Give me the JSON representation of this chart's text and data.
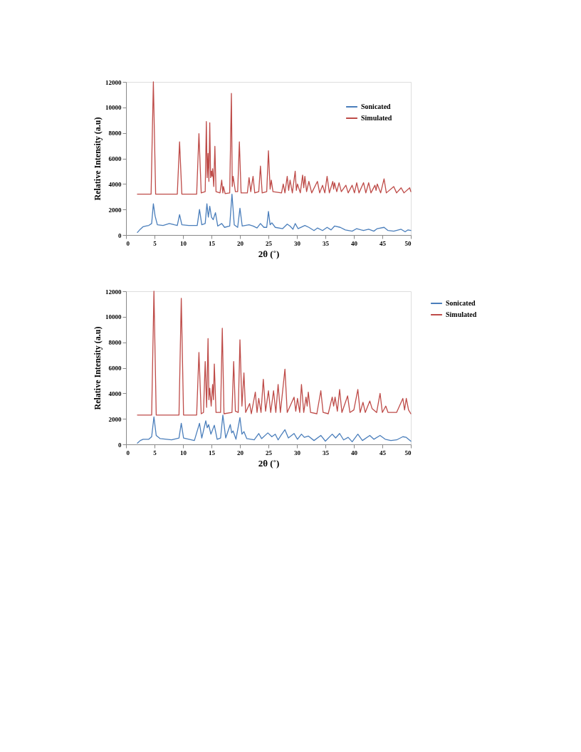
{
  "chart_data": [
    {
      "type": "line",
      "xlabel": "2θ (˚)",
      "ylabel": "Relative Intensity (a.u)",
      "xlim": [
        0,
        50
      ],
      "xticks": [
        0,
        5,
        10,
        15,
        20,
        25,
        30,
        35,
        40,
        45,
        50
      ],
      "ylim": [
        0,
        12000
      ],
      "yticks": [
        0,
        2000,
        4000,
        6000,
        8000,
        10000,
        12000
      ],
      "grid": false,
      "legend": "top right",
      "marker": "none",
      "line_style": "solid",
      "series": [
        {
          "name": "Sonicated",
          "color": "#4a7ebb",
          "x": [
            2,
            2.5,
            3,
            3.5,
            4,
            4.5,
            4.8,
            5.1,
            5.5,
            6.5,
            7.6,
            8.5,
            9.0,
            9.4,
            9.8,
            11,
            12.5,
            12.9,
            13.3,
            13.9,
            14.2,
            14.45,
            14.7,
            15.0,
            15.3,
            15.7,
            16.1,
            16.8,
            17.3,
            18.2,
            18.6,
            19.0,
            19.6,
            20.0,
            20.4,
            21.6,
            22.3,
            23.0,
            23.6,
            24.2,
            24.7,
            25.0,
            25.3,
            25.6,
            26.2,
            27.5,
            28.3,
            28.8,
            29.3,
            29.7,
            30.2,
            31.4,
            32.1,
            33.0,
            33.6,
            34.5,
            35.3,
            36.0,
            36.6,
            37.6,
            38.5,
            39.7,
            40.5,
            41.7,
            42.6,
            43.5,
            44.1,
            45.3,
            46.0,
            47.0,
            48.3,
            49.0,
            49.5,
            50
          ],
          "values": [
            200,
            450,
            650,
            700,
            750,
            900,
            2450,
            1500,
            800,
            750,
            900,
            800,
            750,
            1600,
            800,
            750,
            750,
            2000,
            800,
            900,
            2450,
            1400,
            2250,
            1400,
            1200,
            1750,
            700,
            900,
            600,
            700,
            3200,
            800,
            600,
            2100,
            700,
            800,
            700,
            550,
            900,
            600,
            600,
            1850,
            800,
            950,
            600,
            500,
            850,
            700,
            450,
            900,
            500,
            750,
            600,
            350,
            550,
            350,
            600,
            400,
            700,
            600,
            400,
            300,
            500,
            350,
            450,
            300,
            500,
            600,
            350,
            300,
            450,
            250,
            400,
            350
          ]
        },
        {
          "name": "Simulated",
          "color": "#be4b48",
          "x": [
            2,
            4.4,
            4.8,
            5.2,
            9.0,
            9.4,
            9.8,
            12.4,
            12.8,
            13.2,
            13.9,
            14.1,
            14.25,
            14.4,
            14.55,
            14.7,
            14.85,
            15.0,
            15.1,
            15.2,
            15.4,
            15.6,
            15.8,
            16.5,
            16.8,
            17.0,
            17.1,
            17.4,
            18.2,
            18.5,
            18.65,
            18.8,
            19.2,
            19.6,
            19.9,
            20.2,
            21.3,
            21.6,
            21.9,
            22.3,
            22.6,
            23.3,
            23.6,
            23.9,
            24.7,
            25.0,
            25.3,
            25.5,
            25.8,
            27.3,
            27.6,
            27.9,
            28.3,
            28.55,
            28.8,
            29.2,
            29.7,
            29.9,
            30.1,
            30.6,
            31.0,
            31.2,
            31.4,
            31.7,
            32.1,
            32.6,
            33.6,
            34.0,
            34.5,
            34.9,
            35.3,
            35.7,
            36.3,
            36.45,
            36.6,
            37.0,
            37.4,
            37.8,
            38.6,
            39.0,
            39.7,
            40.1,
            40.5,
            40.9,
            41.7,
            42.1,
            42.6,
            43.0,
            43.7,
            43.9,
            44.1,
            44.7,
            45.3,
            45.7,
            47.0,
            47.5,
            48.3,
            48.8,
            49.8,
            50
          ],
          "values": [
            3200,
            3200,
            12000,
            3200,
            3200,
            7300,
            3200,
            3200,
            7950,
            3300,
            3400,
            8900,
            4500,
            6400,
            4200,
            8800,
            4500,
            5000,
            4600,
            5200,
            3800,
            6950,
            3400,
            3300,
            4300,
            3300,
            3800,
            3250,
            3300,
            11100,
            3800,
            4600,
            3400,
            3400,
            7300,
            3300,
            3300,
            4500,
            3400,
            4600,
            3300,
            3400,
            5400,
            3300,
            3400,
            6600,
            3600,
            4300,
            3400,
            3300,
            4000,
            3300,
            4600,
            3500,
            4300,
            3300,
            5000,
            3500,
            4000,
            3300,
            4700,
            3700,
            4600,
            3400,
            4200,
            3300,
            4200,
            3300,
            3900,
            3300,
            4600,
            3300,
            4200,
            3600,
            4100,
            3400,
            4100,
            3400,
            3900,
            3300,
            3900,
            3300,
            4100,
            3300,
            4100,
            3300,
            4100,
            3300,
            3900,
            3500,
            4000,
            3300,
            4400,
            3300,
            3800,
            3300,
            3700,
            3300,
            3700,
            3400
          ]
        }
      ]
    },
    {
      "type": "line",
      "xlabel": "2θ (˚)",
      "ylabel": "Relative Intensity (a.u)",
      "xlim": [
        0,
        50
      ],
      "xticks": [
        0,
        5,
        10,
        15,
        20,
        25,
        30,
        35,
        40,
        45,
        50
      ],
      "ylim": [
        0,
        12000
      ],
      "yticks": [
        0,
        2000,
        4000,
        6000,
        8000,
        10000,
        12000
      ],
      "grid": false,
      "legend": "right",
      "marker": "none",
      "line_style": "solid",
      "series": [
        {
          "name": "Sonicated",
          "color": "#4a7ebb",
          "x": [
            2,
            2.5,
            3,
            4,
            4.5,
            4.9,
            5.3,
            6,
            8,
            9.3,
            9.7,
            10.1,
            12,
            12.9,
            13.3,
            14.0,
            14.25,
            14.5,
            14.9,
            15.5,
            16.0,
            16.6,
            17.0,
            17.5,
            18.3,
            18.55,
            18.8,
            19.3,
            20.0,
            20.35,
            20.7,
            21.2,
            22.5,
            23.3,
            23.8,
            24.9,
            25.6,
            26.2,
            26.7,
            27.2,
            27.9,
            28.5,
            29.5,
            30.1,
            30.8,
            31.3,
            32.0,
            33.0,
            34.2,
            35.0,
            36.2,
            36.8,
            37.5,
            38.2,
            39.0,
            39.7,
            40.7,
            41.5,
            42.8,
            43.5,
            44.6,
            45.5,
            46.5,
            47.5,
            48.6,
            49.2,
            50
          ],
          "values": [
            100,
            300,
            400,
            400,
            600,
            2150,
            700,
            450,
            350,
            500,
            1650,
            500,
            300,
            1650,
            500,
            1850,
            1300,
            1550,
            800,
            1500,
            400,
            500,
            2300,
            500,
            1550,
            900,
            1050,
            400,
            2100,
            800,
            1000,
            450,
            350,
            850,
            450,
            900,
            600,
            800,
            350,
            700,
            1150,
            500,
            850,
            400,
            800,
            550,
            650,
            300,
            700,
            250,
            800,
            500,
            850,
            350,
            550,
            200,
            800,
            300,
            700,
            400,
            700,
            400,
            300,
            350,
            600,
            550,
            250
          ]
        },
        {
          "name": "Simulated",
          "color": "#be4b48",
          "x": [
            2,
            4.5,
            4.9,
            5.3,
            9.3,
            9.7,
            10.1,
            12.4,
            12.8,
            13.2,
            13.6,
            13.9,
            14.15,
            14.4,
            14.55,
            14.7,
            14.95,
            15.2,
            15.35,
            15.5,
            15.8,
            16.6,
            16.9,
            17.2,
            18.6,
            18.9,
            19.2,
            19.7,
            20.0,
            20.35,
            20.7,
            21.0,
            21.7,
            22.0,
            22.7,
            23.0,
            23.3,
            23.7,
            24.1,
            24.5,
            25.0,
            25.4,
            25.9,
            26.3,
            26.7,
            27.1,
            27.9,
            28.3,
            29.5,
            29.8,
            30.1,
            30.5,
            30.8,
            31.2,
            31.6,
            31.8,
            32.0,
            32.4,
            33.5,
            34.2,
            34.6,
            35.5,
            36.2,
            36.45,
            36.7,
            37.1,
            37.5,
            37.9,
            38.9,
            39.3,
            40.0,
            40.7,
            41.1,
            41.6,
            42.0,
            42.8,
            43.2,
            44.0,
            44.6,
            45.0,
            45.6,
            46.0,
            47.5,
            48.6,
            48.9,
            49.2,
            49.6,
            50
          ],
          "values": [
            2300,
            2300,
            12000,
            2300,
            2300,
            11450,
            2300,
            2300,
            7200,
            2400,
            2500,
            6500,
            2900,
            8300,
            3500,
            4400,
            3000,
            4700,
            3500,
            6300,
            2500,
            2500,
            9100,
            2400,
            2500,
            6500,
            2600,
            2500,
            8200,
            3000,
            5600,
            2500,
            3200,
            2400,
            4100,
            2500,
            3600,
            2500,
            5100,
            2600,
            4200,
            2500,
            4200,
            2500,
            4700,
            2500,
            5900,
            2500,
            3700,
            2600,
            3600,
            2500,
            4700,
            2500,
            3700,
            3000,
            4100,
            2500,
            2400,
            4200,
            2500,
            2400,
            3700,
            3000,
            3700,
            2600,
            4300,
            2500,
            3800,
            2500,
            2700,
            4300,
            2500,
            3300,
            2500,
            3400,
            2800,
            2500,
            4000,
            2500,
            3000,
            2500,
            2500,
            3600,
            2700,
            3600,
            2700,
            2400
          ]
        }
      ]
    }
  ]
}
